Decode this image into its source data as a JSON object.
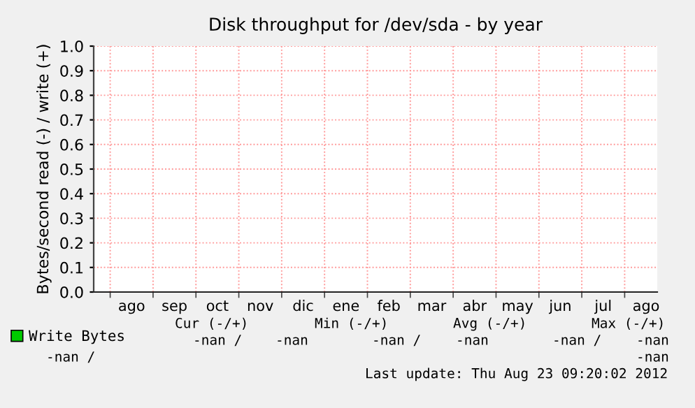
{
  "chart_data": {
    "type": "line",
    "title": "Disk throughput for /dev/sda - by year",
    "ylabel": "Bytes/second read (-) / write (+)",
    "categories": [
      "ago",
      "sep",
      "oct",
      "nov",
      "dic",
      "ene",
      "feb",
      "mar",
      "abr",
      "may",
      "jun",
      "jul",
      "ago"
    ],
    "series": [
      {
        "name": "Write Bytes",
        "color": "#00cc00",
        "values": [
          null,
          null,
          null,
          null,
          null,
          null,
          null,
          null,
          null,
          null,
          null,
          null,
          null
        ]
      }
    ],
    "ylim": [
      0,
      1.0
    ],
    "yticks": [
      {
        "value": 0,
        "label": "0.0"
      },
      {
        "value": 0.1,
        "label": "0.1"
      },
      {
        "value": 0.2,
        "label": "0.2"
      },
      {
        "value": 0.3,
        "label": "0.3"
      },
      {
        "value": 0.4,
        "label": "0.4"
      },
      {
        "value": 0.5,
        "label": "0.5"
      },
      {
        "value": 0.6,
        "label": "0.6"
      },
      {
        "value": 0.7,
        "label": "0.7"
      },
      {
        "value": 0.8,
        "label": "0.8"
      },
      {
        "value": 0.9,
        "label": "0.9"
      },
      {
        "value": 1.0,
        "label": "1.0"
      }
    ],
    "grid": true,
    "legend": "bottom left",
    "annotations": [
      "Cur (-/+)",
      "Min (-/+)",
      "Avg (-/+)",
      "Max (-/+)",
      "-nan /",
      "-nan",
      "-nan /",
      "-nan",
      "-nan /",
      "-nan",
      "-nan /",
      "-nan",
      "Last update: Thu Aug 23 09:20:02 2012"
    ]
  }
}
